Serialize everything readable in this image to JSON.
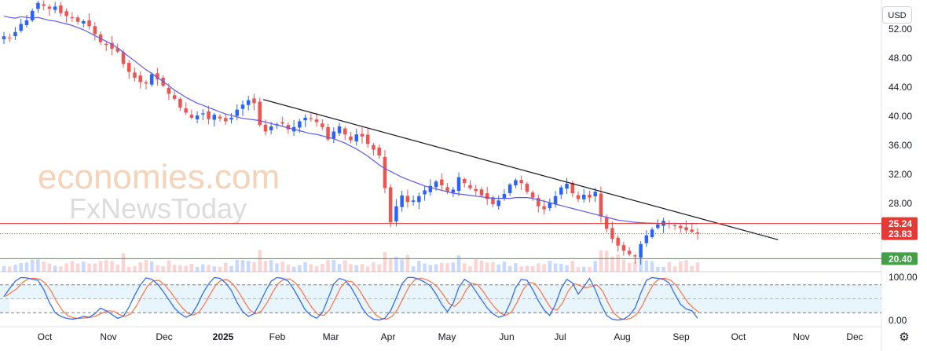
{
  "currency": "USD",
  "settings_icon": "gear-icon",
  "watermark": {
    "brand_top": "economies.com",
    "brand_bottom": "FxNewsToday"
  },
  "colors": {
    "up": "#2962ff",
    "down": "#ef5350",
    "ma": "#5b58f0",
    "resistance": "#e53935",
    "support": "#43a047",
    "trendline": "#131722",
    "stoch_k": "#2962ff",
    "stoch_d": "#ff7043",
    "stoch_band": "#e3f2fd"
  },
  "chart_data": {
    "type": "candlestick",
    "symbol_currency": "USD",
    "price_axis": {
      "labels": [
        "52.00",
        "48.00",
        "44.00",
        "40.00",
        "36.00",
        "32.00",
        "28.00"
      ],
      "range": [
        18.6,
        56
      ]
    },
    "time_axis": {
      "labels": [
        "Oct",
        "Nov",
        "Dec",
        "2025",
        "Feb",
        "Mar",
        "Apr",
        "May",
        "Jun",
        "Jul",
        "Aug",
        "Sep",
        "Oct",
        "Nov",
        "Dec"
      ]
    },
    "price_levels": [
      {
        "name": "resistance",
        "value": 25.24,
        "label": "25.24",
        "style": "solid",
        "color": "#e53935"
      },
      {
        "name": "last_price",
        "value": 23.83,
        "label": "23.83",
        "style": "dotted",
        "color": "#e53935"
      },
      {
        "name": "support",
        "value": 20.4,
        "label": "20.40",
        "style": "solid",
        "color": "#43a047"
      }
    ],
    "trendline": {
      "from": {
        "date": "2025-01-27",
        "price": 42.3
      },
      "to": {
        "date": "2025-11-01",
        "price": 23.0
      }
    },
    "closes": [
      51.0,
      50.8,
      51.6,
      52.7,
      53.2,
      54.5,
      55.6,
      55.2,
      54.8,
      55.1,
      54.2,
      53.8,
      53.5,
      53.0,
      53.1,
      52.4,
      51.3,
      50.2,
      49.8,
      49.3,
      48.9,
      47.2,
      46.1,
      45.3,
      44.7,
      44.5,
      45.8,
      45.1,
      44.2,
      43.1,
      42.4,
      41.2,
      40.5,
      39.8,
      40.1,
      40.4,
      39.6,
      40.2,
      39.7,
      39.3,
      39.8,
      40.9,
      41.6,
      42.2,
      41.8,
      38.8,
      37.9,
      38.6,
      38.9,
      39.0,
      38.2,
      38.5,
      39.3,
      39.8,
      39.6,
      39.2,
      38.5,
      36.8,
      37.9,
      38.6,
      37.5,
      36.7,
      37.5,
      37.2,
      36.2,
      35.4,
      34.6,
      30.1,
      25.4,
      27.6,
      29.1,
      28.2,
      28.4,
      29.0,
      29.8,
      30.4,
      31.0,
      30.5,
      29.6,
      29.9,
      31.6,
      30.8,
      30.1,
      29.7,
      29.1,
      28.6,
      27.9,
      28.4,
      29.3,
      30.6,
      31.2,
      30.8,
      29.6,
      28.8,
      27.6,
      27.2,
      28.1,
      29.0,
      30.2,
      30.7,
      29.4,
      28.6,
      29.2,
      28.8,
      29.6,
      26.2,
      24.5,
      23.1,
      22.2,
      21.5,
      21.0,
      20.7,
      22.4,
      23.6,
      24.4,
      25.1,
      25.6,
      25.2,
      24.9,
      24.6,
      24.3,
      24.1,
      23.83
    ],
    "moving_average": {
      "name": "",
      "values": [
        53.8,
        53.6,
        53.5,
        53.7,
        53.6,
        53.5,
        53.6,
        53.4,
        53.2,
        53.1,
        52.9,
        52.7,
        52.5,
        52.2,
        51.9,
        51.5,
        51.1,
        50.7,
        50.3,
        49.9,
        49.4,
        48.8,
        48.2,
        47.6,
        47.0,
        46.4,
        45.9,
        45.3,
        44.8,
        44.2,
        43.6,
        43.1,
        42.6,
        42.2,
        41.8,
        41.5,
        41.2,
        40.9,
        40.6,
        40.3,
        40.1,
        39.9,
        39.7,
        39.6,
        39.5,
        39.4,
        39.2,
        39.0,
        38.8,
        38.6,
        38.4,
        38.2,
        38.0,
        37.8,
        37.6,
        37.5,
        37.3,
        37.1,
        36.9,
        36.6,
        36.3,
        35.9,
        35.5,
        35.0,
        34.5,
        33.9,
        33.3,
        32.8,
        32.4,
        32.0,
        31.6,
        31.3,
        31.0,
        30.7,
        30.4,
        30.2,
        30.0,
        29.8,
        29.6,
        29.4,
        29.3,
        29.2,
        29.1,
        29.0,
        28.9,
        28.8,
        28.7,
        28.7,
        28.7,
        28.7,
        28.8,
        28.8,
        28.8,
        28.7,
        28.5,
        28.3,
        28.1,
        27.9,
        27.7,
        27.5,
        27.3,
        27.1,
        26.9,
        26.7,
        26.5,
        26.3,
        26.1,
        25.9,
        25.7,
        25.6,
        25.5,
        25.4,
        25.35,
        25.3,
        25.28,
        25.25,
        25.24,
        25.24,
        25.24,
        25.24,
        25.24,
        25.24,
        25.24
      ]
    },
    "stochastic": {
      "labels": [
        "100.00",
        "0.00"
      ],
      "upper_band": 80,
      "lower_band": 20,
      "middle": 50,
      "k": [
        55,
        72,
        88,
        96,
        95,
        92,
        90,
        70,
        42,
        20,
        12,
        8,
        6,
        8,
        12,
        10,
        18,
        30,
        24,
        16,
        8,
        12,
        32,
        58,
        80,
        95,
        92,
        82,
        66,
        48,
        30,
        18,
        10,
        16,
        36,
        62,
        82,
        96,
        94,
        84,
        68,
        42,
        22,
        12,
        18,
        40,
        66,
        88,
        96,
        94,
        88,
        70,
        48,
        26,
        14,
        8,
        20,
        50,
        82,
        94,
        90,
        76,
        54,
        30,
        14,
        6,
        4,
        8,
        24,
        52,
        82,
        96,
        96,
        92,
        86,
        78,
        60,
        38,
        22,
        40,
        74,
        92,
        84,
        66,
        48,
        30,
        18,
        10,
        14,
        40,
        74,
        92,
        90,
        70,
        46,
        26,
        14,
        38,
        72,
        92,
        84,
        60,
        76,
        94,
        70,
        38,
        14,
        6,
        4,
        6,
        14,
        30,
        62,
        90,
        96,
        94,
        92,
        84,
        60,
        38,
        28,
        24,
        8
      ]
    }
  }
}
